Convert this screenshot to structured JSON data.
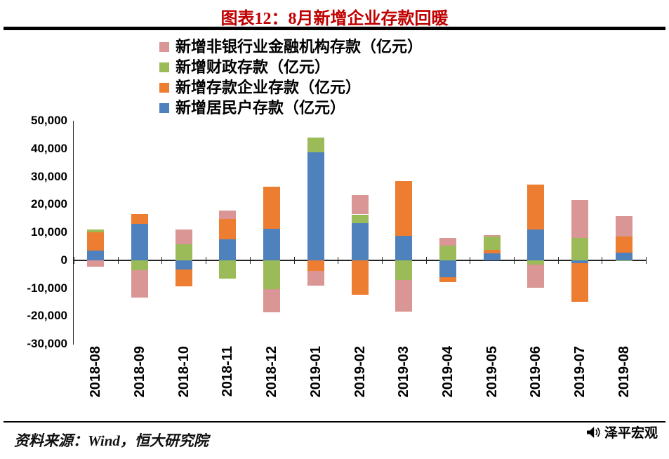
{
  "title": "图表12：8月新增企业存款回暖",
  "footer": {
    "source": "资料来源：Wind，恒大研究院",
    "brand": "泽平宏观"
  },
  "chart_data": {
    "type": "bar",
    "stacked": true,
    "title": "图表12：8月新增企业存款回暖",
    "xlabel": "",
    "ylabel": "",
    "ylim": [
      -30000,
      50000
    ],
    "grid": false,
    "legend_position": "top-left",
    "categories": [
      "2018-08",
      "2018-09",
      "2018-10",
      "2018-11",
      "2018-12",
      "2019-01",
      "2019-02",
      "2019-03",
      "2019-04",
      "2019-05",
      "2019-06",
      "2019-07",
      "2019-08"
    ],
    "series": [
      {
        "key": "household",
        "name": "新增居民户存款（亿元）",
        "color": "#4F81BD",
        "values": [
          3500,
          13000,
          -3300,
          7400,
          11300,
          38600,
          13200,
          8700,
          -6200,
          2400,
          11000,
          -1000,
          2700
        ]
      },
      {
        "key": "corporate",
        "name": "新增存款企业存款（亿元）",
        "color": "#ED7D31",
        "values": [
          6500,
          3500,
          -6000,
          7300,
          15000,
          -3900,
          -12300,
          19600,
          -1700,
          1200,
          16000,
          -13900,
          5900
        ]
      },
      {
        "key": "fiscal",
        "name": "新增财政存款（亿元）",
        "color": "#9BBB59",
        "values": [
          900,
          -3500,
          5800,
          -6600,
          -10400,
          5400,
          3200,
          -7000,
          5300,
          4800,
          -1500,
          8100,
          -200
        ]
      },
      {
        "key": "nonbank",
        "name": "新增非银行业金融机构存款（亿元）",
        "color": "#D99694",
        "values": [
          -2400,
          -10000,
          5300,
          3200,
          -8300,
          -5100,
          6900,
          -11500,
          2800,
          600,
          -8500,
          13400,
          7300
        ]
      }
    ],
    "yticks": [
      {
        "value": 50000,
        "label": "50,000"
      },
      {
        "value": 40000,
        "label": "40,000"
      },
      {
        "value": 30000,
        "label": "30,000"
      },
      {
        "value": 20000,
        "label": "20,000"
      },
      {
        "value": 10000,
        "label": "10,000"
      },
      {
        "value": 0,
        "label": "0"
      },
      {
        "value": -10000,
        "label": "-10,000"
      },
      {
        "value": -20000,
        "label": "-20,000"
      },
      {
        "value": -30000,
        "label": "-30,000"
      }
    ]
  }
}
